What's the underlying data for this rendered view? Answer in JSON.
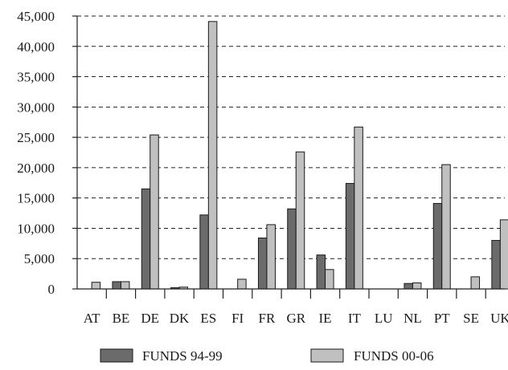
{
  "chart_data": {
    "type": "bar",
    "title": "",
    "xlabel": "",
    "ylabel": "",
    "categories": [
      "AT",
      "BE",
      "DE",
      "DK",
      "ES",
      "FI",
      "FR",
      "GR",
      "IE",
      "IT",
      "LU",
      "NL",
      "PT",
      "SE",
      "UK"
    ],
    "series": [
      {
        "name": "FUNDS 94-99",
        "color": "#6b6b6b",
        "values": [
          0,
          1200,
          16500,
          200,
          12200,
          0,
          8400,
          13200,
          5600,
          17400,
          0,
          900,
          14100,
          0,
          8000
        ]
      },
      {
        "name": "FUNDS 00-06",
        "color": "#c0c0c0",
        "values": [
          1100,
          1200,
          25400,
          300,
          44100,
          1600,
          10600,
          22600,
          3200,
          26700,
          0,
          1000,
          20500,
          2000,
          11400
        ]
      }
    ],
    "ylim": [
      0,
      45000
    ],
    "yticks": [
      "0",
      "5,000",
      "10,000",
      "15,000",
      "20,000",
      "25,000",
      "30,000",
      "35,000",
      "40,000",
      "45,000"
    ],
    "ytick_values": [
      0,
      5000,
      10000,
      15000,
      20000,
      25000,
      30000,
      35000,
      40000,
      45000
    ],
    "grid": true,
    "legend_position": "bottom"
  }
}
